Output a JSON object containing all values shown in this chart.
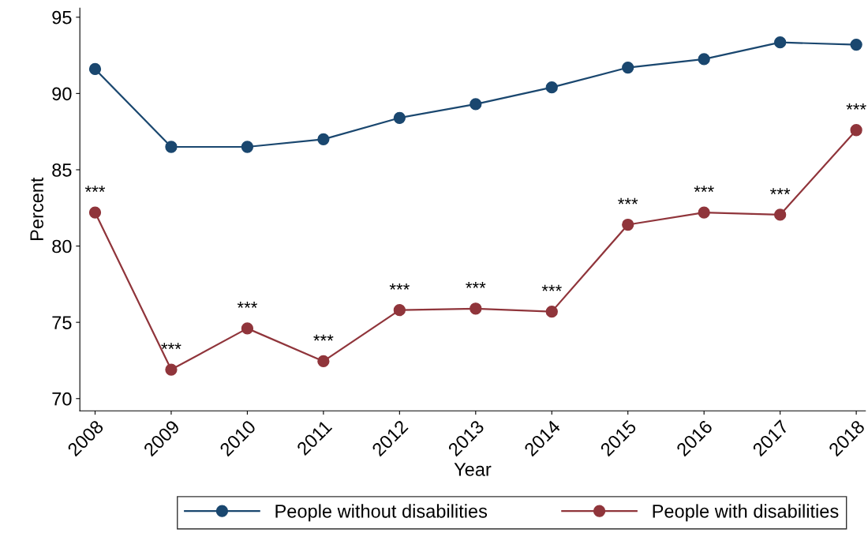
{
  "chart_data": {
    "type": "line",
    "xlabel": "Year",
    "ylabel": "Percent",
    "categories": [
      "2008",
      "2009",
      "2010",
      "2011",
      "2012",
      "2013",
      "2014",
      "2015",
      "2016",
      "2017",
      "2018"
    ],
    "series": [
      {
        "name": "People without disabilities",
        "color": "#1a476f",
        "values": [
          91.6,
          86.5,
          86.5,
          87.0,
          88.4,
          89.3,
          90.4,
          91.7,
          92.25,
          93.35,
          93.2
        ]
      },
      {
        "name": "People with disabilities",
        "color": "#90353b",
        "values": [
          82.2,
          71.9,
          74.6,
          72.45,
          75.8,
          75.9,
          75.7,
          81.4,
          82.2,
          82.05,
          87.6
        ]
      }
    ],
    "ylim": [
      69.2,
      95.6
    ],
    "yticks": [
      70,
      75,
      80,
      85,
      90,
      95
    ],
    "marker": "circle",
    "line_style": "solid",
    "grid": false,
    "legend": "bottom",
    "annotations": [
      {
        "text": "***",
        "x": "2008",
        "y": 82.2
      },
      {
        "text": "***",
        "x": "2009",
        "y": 71.9
      },
      {
        "text": "***",
        "x": "2010",
        "y": 74.6
      },
      {
        "text": "***",
        "x": "2011",
        "y": 72.45
      },
      {
        "text": "***",
        "x": "2012",
        "y": 75.8
      },
      {
        "text": "***",
        "x": "2013",
        "y": 75.9
      },
      {
        "text": "***",
        "x": "2014",
        "y": 75.7
      },
      {
        "text": "***",
        "x": "2015",
        "y": 81.4
      },
      {
        "text": "***",
        "x": "2016",
        "y": 82.2
      },
      {
        "text": "***",
        "x": "2017",
        "y": 82.05
      },
      {
        "text": "***",
        "x": "2018",
        "y": 87.6
      }
    ]
  }
}
